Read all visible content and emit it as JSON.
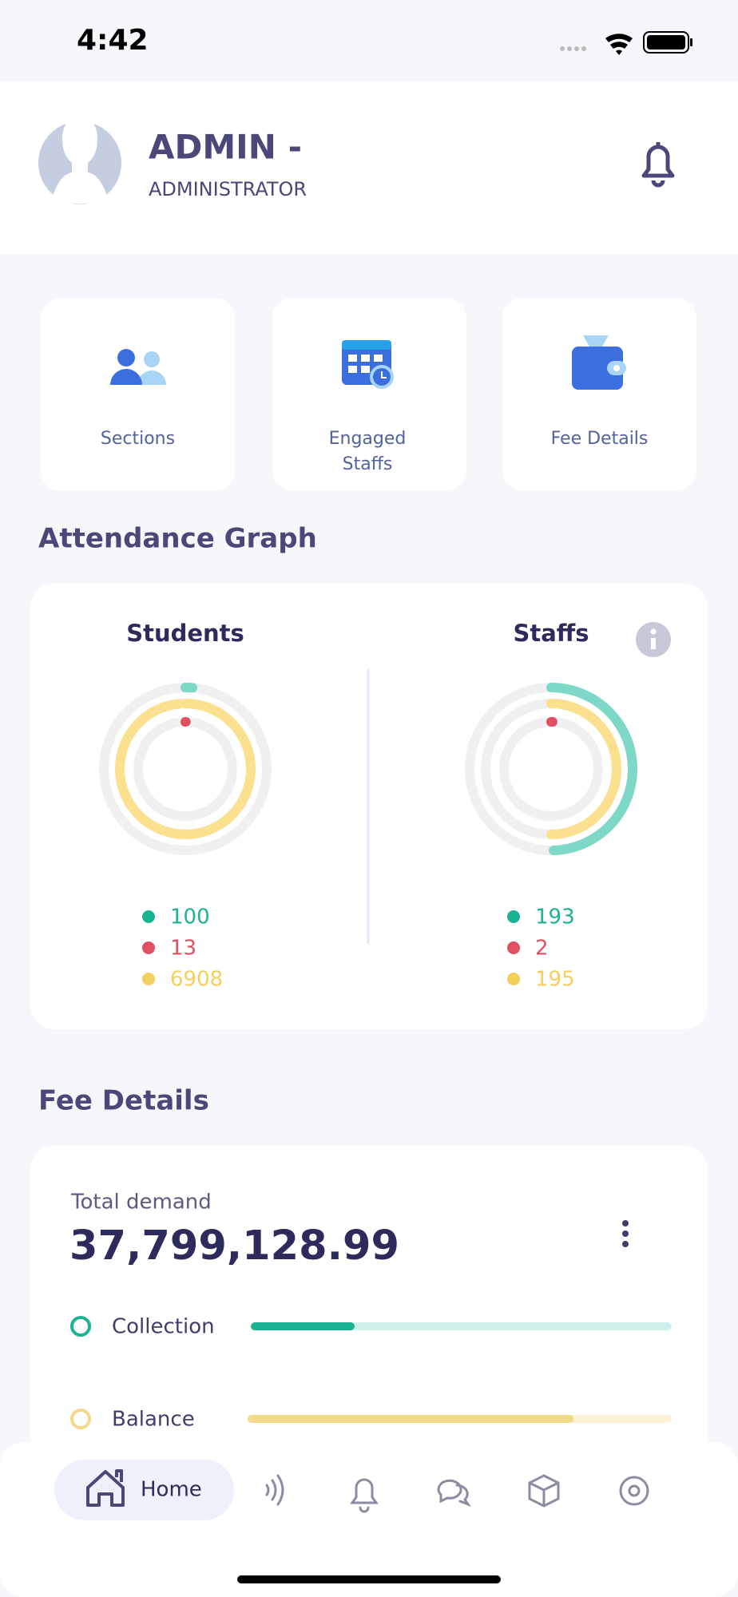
{
  "status_bar": {
    "time": "4:42"
  },
  "header": {
    "name": "ADMIN -",
    "role": "ADMINISTRATOR"
  },
  "menu": {
    "items": [
      "Sections",
      "Engaged Staffs",
      "Fee Details"
    ]
  },
  "attendance": {
    "title": "Attendance Graph",
    "colors": [
      "#1bb394",
      "#e05065",
      "#f5cf5c"
    ],
    "ring_colors": [
      "#7ed8c8",
      "#e05065",
      "#fbe08f"
    ],
    "charts": [
      {
        "title": "Students",
        "values": [
          100,
          13,
          6908
        ]
      },
      {
        "title": "Staffs",
        "values": [
          193,
          2,
          195
        ]
      }
    ]
  },
  "fee": {
    "title": "Fee Details",
    "total_label": "Total demand",
    "total_value": "37,799,128.99",
    "rows": [
      "Collection",
      "Balance"
    ]
  },
  "nav": {
    "home": "Home"
  }
}
